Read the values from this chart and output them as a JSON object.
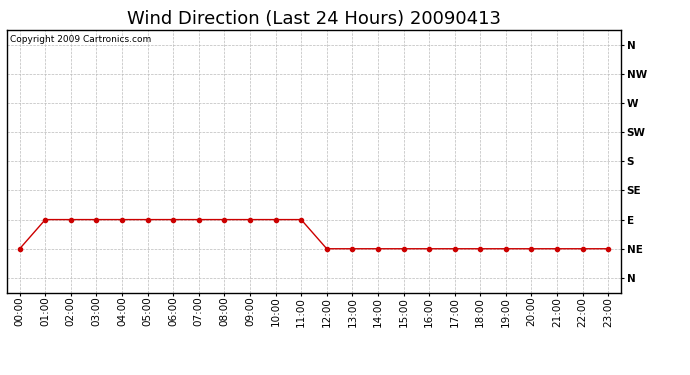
{
  "title": "Wind Direction (Last 24 Hours) 20090413",
  "copyright_text": "Copyright 2009 Cartronics.com",
  "x_labels": [
    "00:00",
    "01:00",
    "02:00",
    "03:00",
    "04:00",
    "05:00",
    "06:00",
    "07:00",
    "08:00",
    "09:00",
    "10:00",
    "11:00",
    "12:00",
    "13:00",
    "14:00",
    "15:00",
    "16:00",
    "17:00",
    "18:00",
    "19:00",
    "20:00",
    "21:00",
    "22:00",
    "23:00"
  ],
  "y_labels": [
    "N",
    "NW",
    "W",
    "SW",
    "S",
    "SE",
    "E",
    "NE",
    "N"
  ],
  "y_values": [
    8,
    7,
    6,
    5,
    4,
    3,
    2,
    1,
    0
  ],
  "wind_data": [
    1,
    2,
    2,
    2,
    2,
    2,
    2,
    2,
    2,
    2,
    2,
    2,
    1,
    1,
    1,
    1,
    1,
    1,
    1,
    1,
    1,
    1,
    1,
    1
  ],
  "line_color": "#cc0000",
  "marker": "o",
  "marker_size": 3,
  "bg_color": "#ffffff",
  "plot_bg_color": "#ffffff",
  "grid_color": "#bbbbbb",
  "title_fontsize": 13,
  "tick_fontsize": 7.5,
  "copyright_fontsize": 6.5
}
